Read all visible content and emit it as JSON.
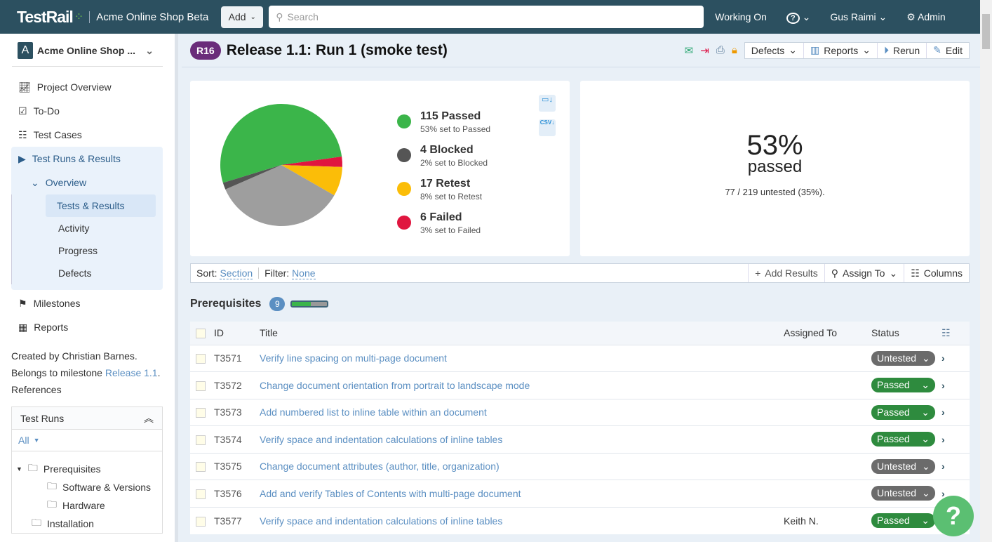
{
  "header": {
    "logo": "TestRail",
    "project": "Acme Online Shop Beta",
    "add": "Add",
    "search_placeholder": "Search",
    "working_on": "Working On",
    "help": "?",
    "user": "Gus Raimi",
    "admin": "Admin"
  },
  "sidebar": {
    "project": "Acme Online Shop ...",
    "project_initial": "A",
    "items": [
      {
        "label": "Project Overview"
      },
      {
        "label": "To-Do"
      },
      {
        "label": "Test Cases"
      },
      {
        "label": "Test Runs & Results"
      },
      {
        "label": "Overview"
      },
      {
        "label": "Tests & Results"
      },
      {
        "label": "Activity"
      },
      {
        "label": "Progress"
      },
      {
        "label": "Defects"
      },
      {
        "label": "Milestones"
      },
      {
        "label": "Reports"
      }
    ],
    "info": {
      "created": "Created by Christian Barnes.",
      "belongs": "Belongs to milestone",
      "milestone": "Release 1.1",
      "period": ".",
      "refs": "References"
    },
    "test_runs": {
      "title": "Test Runs",
      "filter": "All",
      "tree": [
        "Prerequisites",
        "Software & Versions",
        "Hardware",
        "Installation"
      ]
    }
  },
  "run": {
    "badge": "R16",
    "title": "Release 1.1: Run 1 (smoke test)",
    "buttons": {
      "defects": "Defects",
      "reports": "Reports",
      "rerun": "Rerun",
      "edit": "Edit"
    }
  },
  "chart_data": {
    "type": "pie",
    "slices": [
      {
        "label": "Passed",
        "value": 115,
        "text": "115 Passed",
        "sub": "53% set to Passed",
        "color": "#3bb54a"
      },
      {
        "label": "Failed",
        "value": 6,
        "text": "6 Failed",
        "sub": "3% set to Failed",
        "color": "#e0163f"
      },
      {
        "label": "Retest",
        "value": 17,
        "text": "17 Retest",
        "sub": "8% set to Retest",
        "color": "#fbbd08"
      },
      {
        "label": "Untested",
        "value": 77,
        "color": "#9e9e9e"
      },
      {
        "label": "Blocked",
        "value": 4,
        "text": "4 Blocked",
        "sub": "2% set to Blocked",
        "color": "#555555"
      }
    ]
  },
  "summary": {
    "percent": "53%",
    "label": "passed",
    "untested": "77 / 219 untested (35%)."
  },
  "toolbar": {
    "sort_label": "Sort:",
    "sort": "Section",
    "filter_label": "Filter:",
    "filter": "None",
    "add_results": "Add Results",
    "assign": "Assign To",
    "columns": "Columns"
  },
  "section": {
    "name": "Prerequisites",
    "count": "9",
    "progress": 0.53
  },
  "table": {
    "headers": {
      "id": "ID",
      "title": "Title",
      "assigned": "Assigned To",
      "status": "Status"
    },
    "rows": [
      {
        "id": "T3571",
        "title": "Verify line spacing on multi-page document",
        "assigned": "",
        "status": "Untested"
      },
      {
        "id": "T3572",
        "title": "Change document orientation from portrait to landscape mode",
        "assigned": "",
        "status": "Passed"
      },
      {
        "id": "T3573",
        "title": "Add numbered list to inline table within an document",
        "assigned": "",
        "status": "Passed"
      },
      {
        "id": "T3574",
        "title": "Verify space and indentation calculations of inline tables",
        "assigned": "",
        "status": "Passed"
      },
      {
        "id": "T3575",
        "title": "Change document attributes (author, title, organization)",
        "assigned": "",
        "status": "Untested"
      },
      {
        "id": "T3576",
        "title": "Add and verify Tables of Contents with multi-page document",
        "assigned": "",
        "status": "Untested"
      },
      {
        "id": "T3577",
        "title": "Verify space and indentation calculations of inline tables",
        "assigned": "Keith N.",
        "status": "Passed"
      }
    ]
  },
  "colors": {
    "header": "#2c5060",
    "passed": "#2e8b3e",
    "untested": "#6b6b6b",
    "link": "#5b8fc2"
  }
}
